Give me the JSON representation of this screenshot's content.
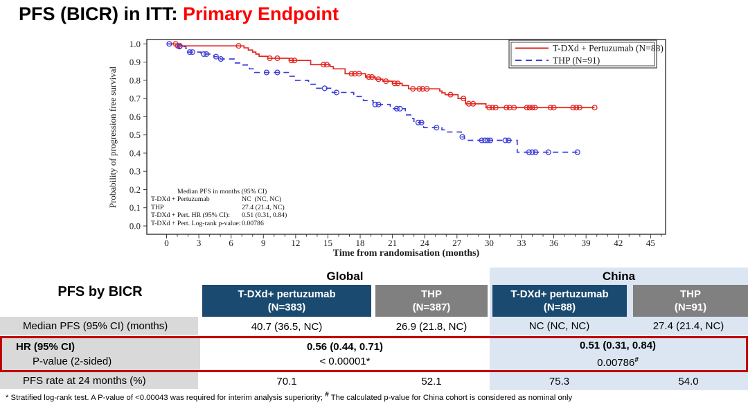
{
  "page_title": {
    "prefix": "PFS (BICR) in ITT: ",
    "highlight": "Primary Endpoint"
  },
  "colors": {
    "accent_red": "#fe0000",
    "series_red": "#e3251f",
    "series_blue": "#3d3dd8",
    "navy": "#1b4a70",
    "gray_header": "#808080",
    "label_gray": "#d9d9d9",
    "china_blue": "#dce6f2",
    "hr_border": "#c00000"
  },
  "chart_data": {
    "type": "line",
    "subtype": "kaplan-meier-step",
    "title": "",
    "xlabel": "Time from randomisation (months)",
    "ylabel": "Probability of progression free survival",
    "xlim": [
      0,
      46.4
    ],
    "xticks": [
      0,
      3,
      6,
      9,
      12,
      15,
      18,
      21,
      24,
      27,
      30,
      33,
      36,
      39,
      42,
      45
    ],
    "x_minor_step": 1,
    "ylim": [
      0,
      1.0
    ],
    "yticks": [
      "0.0",
      "0.1",
      "0.2",
      "0.3",
      "0.4",
      "0.5",
      "0.6",
      "0.7",
      "0.8",
      "0.9",
      "1.0"
    ],
    "grid": false,
    "legend_position": "top-right",
    "series": [
      {
        "name": "T-DXd + Pertuzumab (N=88)",
        "color": "#e3251f",
        "dash": "solid",
        "steps": [
          [
            0,
            1.0
          ],
          [
            1.0,
            0.989
          ],
          [
            7.2,
            0.978
          ],
          [
            7.6,
            0.966
          ],
          [
            8.0,
            0.955
          ],
          [
            8.3,
            0.944
          ],
          [
            8.6,
            0.932
          ],
          [
            9.4,
            0.921
          ],
          [
            11.4,
            0.909
          ],
          [
            13.4,
            0.886
          ],
          [
            15.2,
            0.875
          ],
          [
            15.5,
            0.863
          ],
          [
            16.6,
            0.836
          ],
          [
            18.5,
            0.818
          ],
          [
            19.4,
            0.806
          ],
          [
            20.1,
            0.795
          ],
          [
            21.0,
            0.783
          ],
          [
            21.9,
            0.771
          ],
          [
            22.5,
            0.753
          ],
          [
            25.4,
            0.741
          ],
          [
            25.6,
            0.731
          ],
          [
            25.9,
            0.721
          ],
          [
            27.1,
            0.7
          ],
          [
            27.8,
            0.671
          ],
          [
            29.7,
            0.65
          ]
        ],
        "end": 39.8,
        "censors": [
          [
            0.85,
            1.0
          ],
          [
            1.05,
            0.989
          ],
          [
            1.25,
            0.989
          ],
          [
            6.7,
            0.989
          ],
          [
            9.6,
            0.921
          ],
          [
            10.3,
            0.921
          ],
          [
            11.6,
            0.909
          ],
          [
            11.9,
            0.909
          ],
          [
            14.6,
            0.886
          ],
          [
            14.9,
            0.886
          ],
          [
            17.2,
            0.836
          ],
          [
            17.5,
            0.836
          ],
          [
            17.9,
            0.836
          ],
          [
            18.8,
            0.818
          ],
          [
            19.1,
            0.818
          ],
          [
            19.7,
            0.806
          ],
          [
            20.4,
            0.795
          ],
          [
            21.2,
            0.783
          ],
          [
            21.5,
            0.783
          ],
          [
            22.9,
            0.753
          ],
          [
            23.5,
            0.753
          ],
          [
            23.8,
            0.753
          ],
          [
            24.2,
            0.753
          ],
          [
            26.4,
            0.721
          ],
          [
            27.6,
            0.7
          ],
          [
            28.1,
            0.671
          ],
          [
            28.5,
            0.671
          ],
          [
            30.0,
            0.65
          ],
          [
            30.3,
            0.65
          ],
          [
            30.6,
            0.65
          ],
          [
            31.6,
            0.65
          ],
          [
            31.9,
            0.65
          ],
          [
            32.3,
            0.65
          ],
          [
            33.5,
            0.65
          ],
          [
            33.75,
            0.65
          ],
          [
            34.0,
            0.65
          ],
          [
            34.25,
            0.65
          ],
          [
            35.7,
            0.65
          ],
          [
            36.0,
            0.65
          ],
          [
            37.8,
            0.65
          ],
          [
            38.1,
            0.65
          ],
          [
            38.4,
            0.65
          ],
          [
            39.8,
            0.65
          ]
        ]
      },
      {
        "name": "THP (N=91)",
        "color": "#3d3dd8",
        "dash": "dashed",
        "steps": [
          [
            0,
            1.0
          ],
          [
            1.1,
            0.985
          ],
          [
            1.8,
            0.974
          ],
          [
            2.0,
            0.955
          ],
          [
            3.2,
            0.944
          ],
          [
            4.4,
            0.93
          ],
          [
            5.0,
            0.917
          ],
          [
            6.3,
            0.895
          ],
          [
            7.0,
            0.884
          ],
          [
            7.7,
            0.863
          ],
          [
            8.2,
            0.843
          ],
          [
            11.4,
            0.822
          ],
          [
            12.0,
            0.8
          ],
          [
            13.2,
            0.778
          ],
          [
            13.9,
            0.756
          ],
          [
            15.4,
            0.733
          ],
          [
            17.4,
            0.711
          ],
          [
            18.3,
            0.689
          ],
          [
            19.2,
            0.667
          ],
          [
            20.8,
            0.644
          ],
          [
            22.2,
            0.61
          ],
          [
            22.7,
            0.59
          ],
          [
            23.0,
            0.568
          ],
          [
            23.9,
            0.54
          ],
          [
            25.6,
            0.528
          ],
          [
            25.9,
            0.516
          ],
          [
            27.4,
            0.489
          ],
          [
            27.7,
            0.47
          ],
          [
            32.6,
            0.405
          ]
        ],
        "end": 38.2,
        "censors": [
          [
            0.25,
            1.0
          ],
          [
            1.2,
            0.985
          ],
          [
            2.15,
            0.955
          ],
          [
            2.4,
            0.955
          ],
          [
            3.45,
            0.944
          ],
          [
            3.7,
            0.944
          ],
          [
            4.6,
            0.93
          ],
          [
            5.05,
            0.917
          ],
          [
            9.3,
            0.843
          ],
          [
            10.3,
            0.843
          ],
          [
            14.7,
            0.756
          ],
          [
            15.8,
            0.733
          ],
          [
            19.4,
            0.667
          ],
          [
            19.7,
            0.667
          ],
          [
            21.4,
            0.644
          ],
          [
            21.7,
            0.644
          ],
          [
            23.4,
            0.568
          ],
          [
            23.7,
            0.568
          ],
          [
            25.1,
            0.54
          ],
          [
            27.5,
            0.489
          ],
          [
            29.3,
            0.47
          ],
          [
            29.6,
            0.47
          ],
          [
            29.85,
            0.47
          ],
          [
            30.1,
            0.47
          ],
          [
            31.5,
            0.47
          ],
          [
            31.8,
            0.47
          ],
          [
            33.7,
            0.405
          ],
          [
            34.0,
            0.405
          ],
          [
            34.3,
            0.405
          ],
          [
            35.5,
            0.405
          ],
          [
            38.2,
            0.405
          ]
        ]
      }
    ],
    "annotation": {
      "header": "Median PFS in months (95% CI)",
      "rows": [
        {
          "label": "T-DXd + Pertuzumab",
          "value": "NC  (NC, NC)"
        },
        {
          "label": "THP",
          "value": "27.4 (21.4, NC)"
        },
        {
          "label": "T-DXd + Pert. HR (95% CI):",
          "value": "0.51 (0.31, 0.84)"
        },
        {
          "label": "T-DXd + Pert. Log-rank p-value:",
          "value": "0.00786"
        }
      ]
    }
  },
  "table": {
    "corner_label": "PFS by BICR",
    "group_headers": [
      {
        "label": "Global"
      },
      {
        "label": "China"
      }
    ],
    "columns": [
      {
        "group": "Global",
        "line1": "T-DXd+ pertuzumab",
        "line2": "(N=383)"
      },
      {
        "group": "Global",
        "line1": "THP",
        "line2": "(N=387)"
      },
      {
        "group": "China",
        "line1": "T-DXd+ pertuzumab",
        "line2": "(N=88)"
      },
      {
        "group": "China",
        "line1": "THP",
        "line2": "(N=91)"
      }
    ],
    "median_row": {
      "label": "Median PFS (95% CI) (months)",
      "values": [
        "40.7 (36.5, NC)",
        "26.9 (21.8, NC)",
        "NC (NC, NC)",
        "27.4 (21.4, NC)"
      ]
    },
    "hr_row": {
      "label_line1": "HR (95% CI)",
      "label_line2": "P-value (2-sided)",
      "global_hr": "0.56 (0.44, 0.71)",
      "global_p": "< 0.00001*",
      "china_hr": "0.51 (0.31, 0.84)",
      "china_p": "0.00786",
      "china_p_sup": "#"
    },
    "rate_row": {
      "label": "PFS rate at 24 months (%)",
      "values": [
        "70.1",
        "52.1",
        "75.3",
        "54.0"
      ]
    },
    "footnote": {
      "part1": "* Stratified log-rank test. A P-value of <0.00043 was required for interim analysis superiority; ",
      "sup": "#",
      "part2": " The calculated p-value for China cohort is considered as nominal only"
    }
  }
}
